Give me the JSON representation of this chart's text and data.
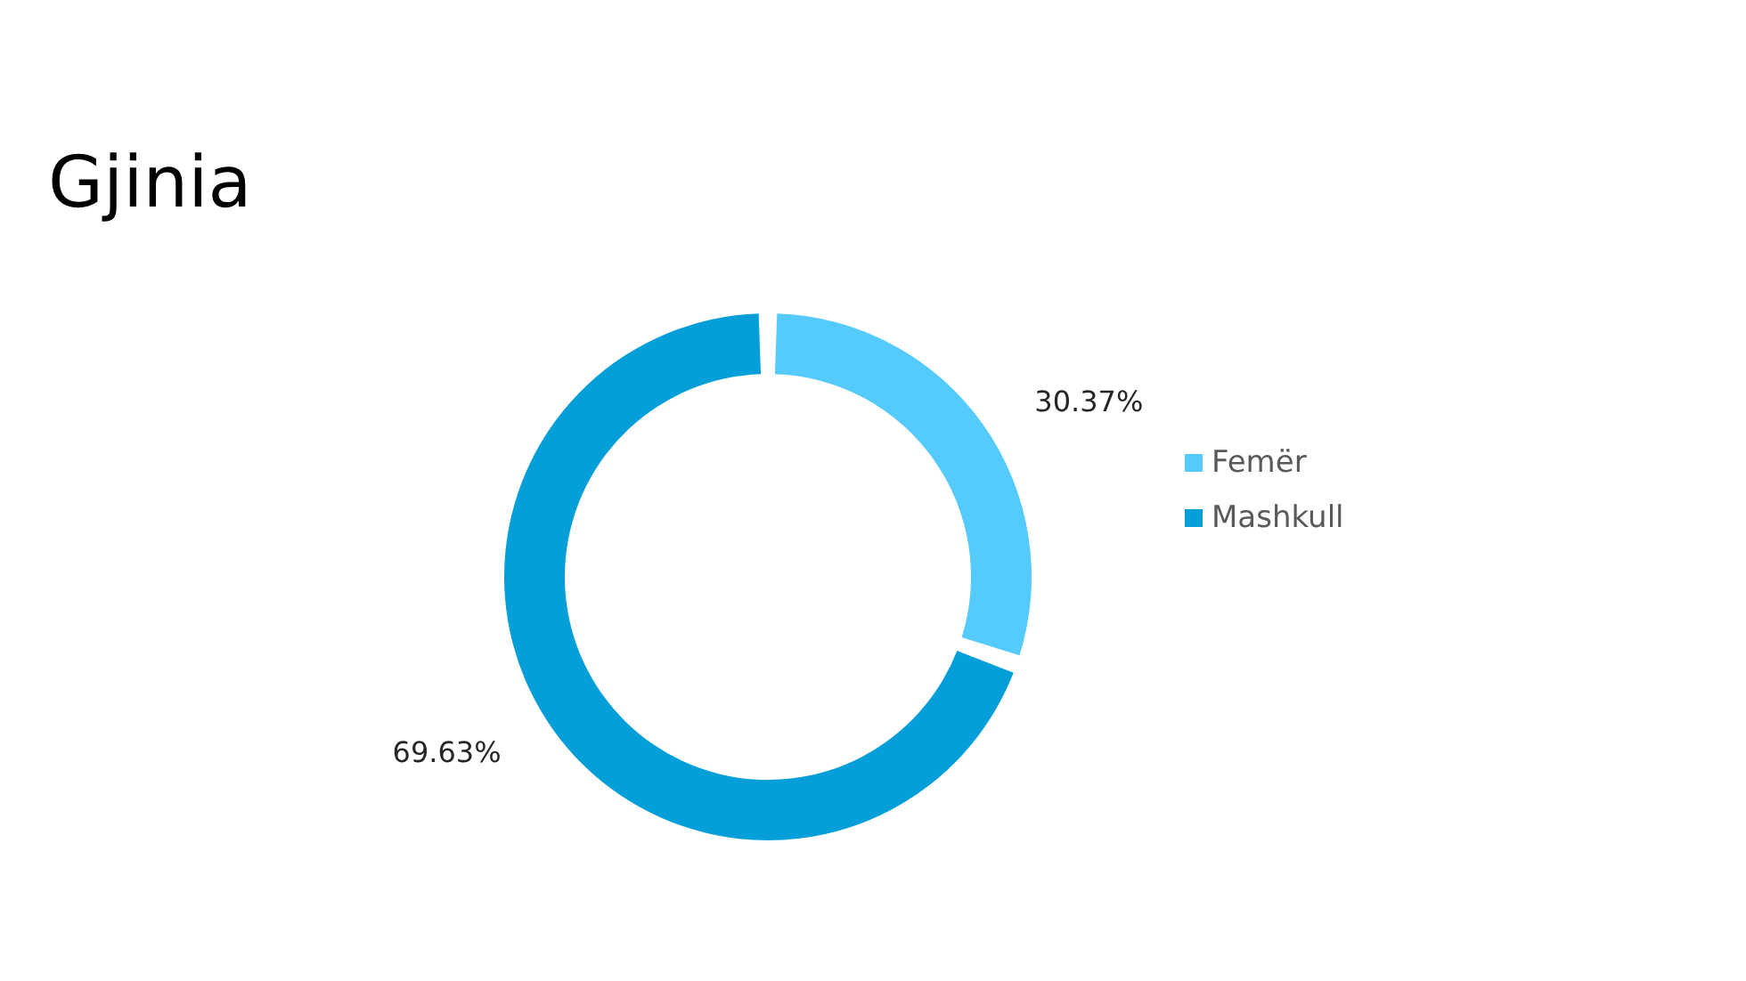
{
  "chart_data": {
    "type": "donut",
    "title": "Gjinia",
    "categories": [
      "Femër",
      "Mashkull"
    ],
    "values": [
      30.37,
      69.63
    ],
    "colors": [
      "#55cbfd",
      "#049fd9"
    ],
    "value_labels": [
      "30.37%",
      "69.63%"
    ],
    "legend": "right"
  }
}
